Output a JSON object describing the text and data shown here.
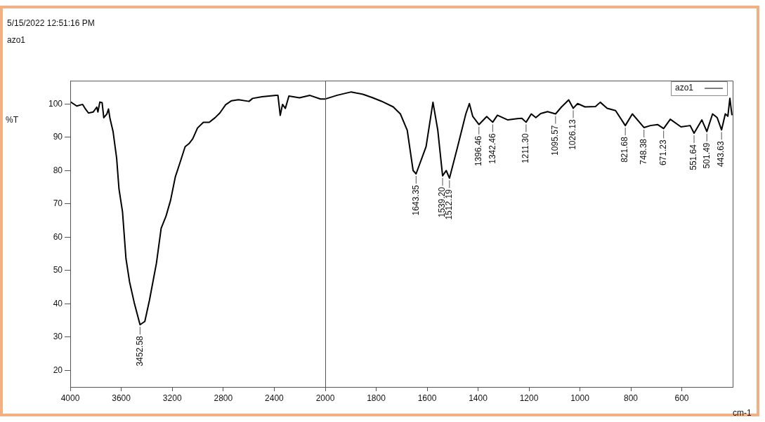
{
  "chart_data": [
    {
      "type": "line",
      "ylabel": "%T",
      "annotations": [
        "5/15/2022 12:51:16 PM",
        "azo1",
        {
          "text": "3452.58",
          "x": 3452.58,
          "y": 33.7
        }
      ],
      "x": [
        4000,
        3949,
        3903,
        3884,
        3857,
        3820,
        3792,
        3783,
        3768,
        3750,
        3737,
        3713,
        3700,
        3688,
        3664,
        3636,
        3618,
        3590,
        3563,
        3535,
        3498,
        3452.58,
        3415,
        3379,
        3324,
        3287,
        3250,
        3213,
        3176,
        3140,
        3099,
        3066,
        3039,
        3002,
        2956,
        2910,
        2864,
        2827,
        2781,
        2735,
        2680,
        2598,
        2570,
        2496,
        2386,
        2371,
        2353,
        2335,
        2313,
        2285,
        2202,
        2120,
        2037,
        2000
      ],
      "series": [
        {
          "color": "#000000",
          "values": [
            100.7,
            99.4,
            99.9,
            98.7,
            97.3,
            97.6,
            99.1,
            97.6,
            100.6,
            100.4,
            95.9,
            97.0,
            98.5,
            95.6,
            91.7,
            83.7,
            74.6,
            67.6,
            53.6,
            46.6,
            40.3,
            33.7,
            34.7,
            41.0,
            52.2,
            62.7,
            66.2,
            71.1,
            78.1,
            82.3,
            87.2,
            88.2,
            89.6,
            92.8,
            94.5,
            94.5,
            95.9,
            97.3,
            99.8,
            101.0,
            101.3,
            100.8,
            101.7,
            102.2,
            102.6,
            102.6,
            96.6,
            99.9,
            98.7,
            102.4,
            101.9,
            102.6,
            101.5,
            101.5
          ]
        }
      ],
      "xlim": [
        4000,
        2000
      ],
      "xticks": [
        4000,
        3600,
        3200,
        2800,
        2400
      ],
      "ylim": [
        15,
        107
      ],
      "yticks": [
        20,
        30,
        40,
        50,
        60,
        70,
        80,
        90,
        100
      ],
      "grid": false,
      "marker": "none",
      "line_style": "solid"
    },
    {
      "type": "line",
      "xlabel": "cm-1",
      "legend": "top right",
      "tick_labels": "x",
      "annotations": [
        {
          "text": "1643.35",
          "x": 1643.35,
          "y": 79
        },
        {
          "text": "1539.20",
          "x": 1539.2,
          "y": 78.4
        },
        {
          "text": "1512.19",
          "x": 1512.19,
          "y": 77.7
        },
        {
          "text": "1396.46",
          "x": 1396.46,
          "y": 93.8
        },
        {
          "text": "1342.46",
          "x": 1342.46,
          "y": 94.5
        },
        {
          "text": "1211.30",
          "x": 1211.3,
          "y": 94.5
        },
        {
          "text": "1095.57",
          "x": 1095.57,
          "y": 97.0
        },
        {
          "text": "1026.13",
          "x": 1026.13,
          "y": 98.7
        },
        {
          "text": "821.68",
          "x": 821.68,
          "y": 93.5
        },
        {
          "text": "748.38",
          "x": 748.38,
          "y": 92.9
        },
        {
          "text": "671.23",
          "x": 671.23,
          "y": 92.6
        },
        {
          "text": "551.64",
          "x": 551.64,
          "y": 91.2
        },
        {
          "text": "501.49",
          "x": 501.49,
          "y": 91.7
        },
        {
          "text": "443.63",
          "x": 443.63,
          "y": 92.2
        }
      ],
      "x": [
        1999,
        1953,
        1898,
        1852,
        1815,
        1779,
        1733,
        1705,
        1678,
        1655,
        1643.35,
        1604,
        1577,
        1558,
        1539.2,
        1525,
        1512.19,
        1480,
        1448,
        1434,
        1421,
        1396.46,
        1366,
        1342.46,
        1324,
        1283,
        1246,
        1228,
        1211.3,
        1191,
        1173,
        1154,
        1127,
        1095.57,
        1072,
        1044,
        1026.13,
        1009,
        980,
        939,
        920,
        893,
        860,
        821.68,
        794,
        748.38,
        723,
        695,
        671.23,
        645,
        603,
        567,
        551.64,
        521,
        501.49,
        479,
        461,
        443.63,
        429,
        419,
        411,
        403
      ],
      "series": [
        {
          "name": "azo1",
          "color": "#000000",
          "values": [
            101.5,
            102.6,
            103.6,
            102.9,
            101.9,
            100.8,
            99.1,
            97.0,
            92.1,
            80.0,
            79.0,
            87.2,
            100.5,
            92.1,
            78.4,
            80.0,
            77.7,
            87.2,
            97.0,
            100.1,
            96.3,
            93.8,
            96.2,
            94.5,
            96.6,
            95.2,
            95.6,
            95.7,
            94.5,
            97.0,
            95.9,
            97.1,
            97.7,
            97.0,
            99.1,
            101.2,
            98.7,
            100.1,
            99.1,
            99.2,
            100.5,
            98.7,
            98.0,
            93.5,
            97.0,
            92.9,
            93.5,
            93.8,
            92.6,
            95.4,
            93.1,
            93.5,
            91.2,
            95.2,
            91.7,
            97.0,
            95.9,
            92.2,
            97.0,
            96.3,
            101.7,
            96.6
          ]
        }
      ],
      "xlim": [
        2000,
        400
      ],
      "xticks": [
        2000,
        1800,
        1600,
        1400,
        1200,
        1000,
        800,
        600
      ],
      "ylim": [
        15,
        107
      ],
      "yticks": [
        20,
        30,
        40,
        50,
        60,
        70,
        80,
        90,
        100
      ],
      "grid": false,
      "marker": "none",
      "line_style": "solid"
    }
  ]
}
